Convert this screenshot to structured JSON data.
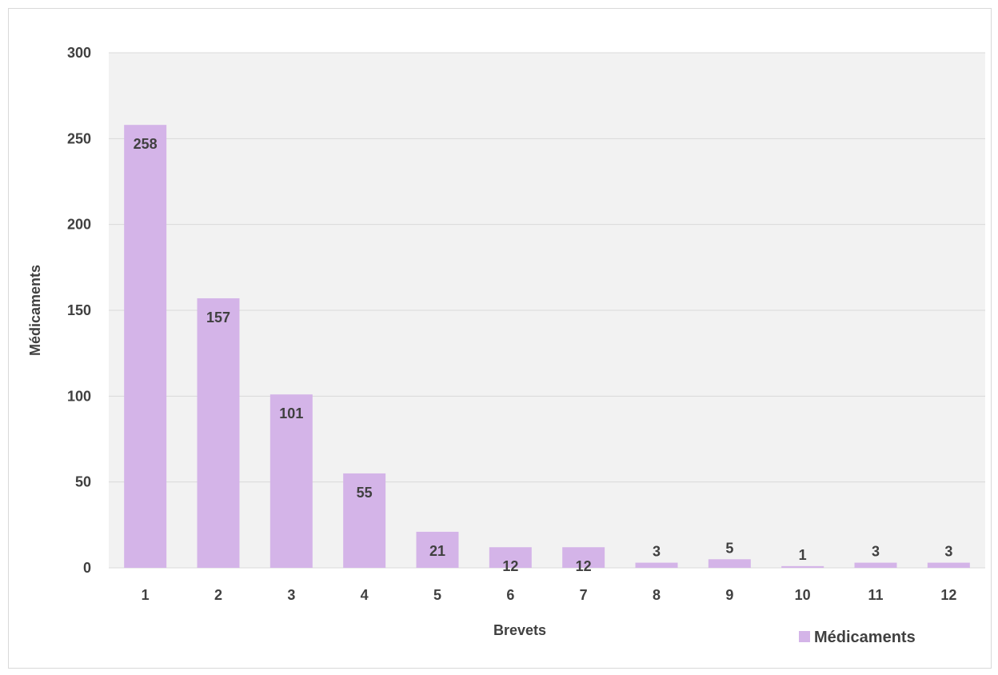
{
  "chart_data": {
    "type": "bar",
    "categories": [
      "1",
      "2",
      "3",
      "4",
      "5",
      "6",
      "7",
      "8",
      "9",
      "10",
      "11",
      "12"
    ],
    "series": [
      {
        "name": "Médicaments",
        "values": [
          258,
          157,
          101,
          55,
          21,
          12,
          12,
          3,
          5,
          1,
          3,
          3
        ],
        "color": "#d4b4e8"
      }
    ],
    "xlabel": "Brevets",
    "ylabel": "Médicaments",
    "ylim": [
      0,
      300
    ],
    "yticks": [
      0,
      50,
      100,
      150,
      200,
      250,
      300
    ],
    "grid": true,
    "legend": "bottom-right",
    "plot_background": "#f2f2f2",
    "grid_color": "#d9d9d9",
    "text_color": "#404040"
  }
}
